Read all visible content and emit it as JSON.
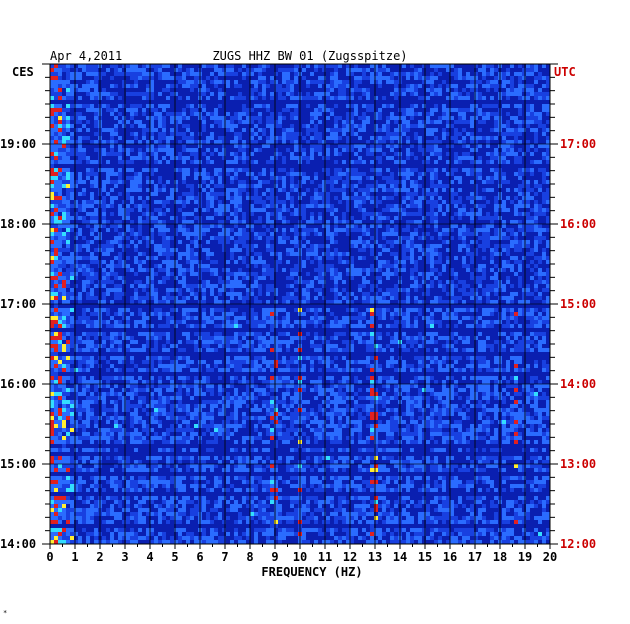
{
  "chart_data": {
    "type": "heatmap",
    "date": "Apr 4,2011",
    "title": "ZUGS HHZ BW 01 (Zugsspitze)",
    "xlabel": "FREQUENCY (HZ)",
    "x_ticks": [
      "0",
      "1",
      "2",
      "3",
      "4",
      "5",
      "6",
      "7",
      "8",
      "9",
      "10",
      "11",
      "12",
      "13",
      "14",
      "15",
      "16",
      "17",
      "18",
      "19",
      "20"
    ],
    "xlim": [
      0,
      20
    ],
    "left_axis_label": "CES",
    "right_axis_label": "UTC",
    "left_time_ticks": [
      "19:00",
      "18:00",
      "17:00",
      "16:00",
      "15:00",
      "14:00"
    ],
    "right_time_ticks": [
      "17:00",
      "16:00",
      "15:00",
      "14:00",
      "13:00",
      "12:00"
    ],
    "time_range_local": [
      "14:00",
      "20:00"
    ],
    "colors": {
      "background_low": "#0a1fb0",
      "mid": "#2a6cff",
      "high": "#33ddff",
      "peak": "#ffee33",
      "max": "#e02020",
      "grid": "#000000",
      "utc_text": "#cc0000"
    },
    "features": {
      "strong_low_frequency_band_hz": [
        0,
        1
      ],
      "high_activity_period_local": [
        "14:00",
        "17:00"
      ],
      "spectral_lines_hz": [
        9,
        10,
        13,
        18.6
      ]
    },
    "footer_mark": "*"
  }
}
